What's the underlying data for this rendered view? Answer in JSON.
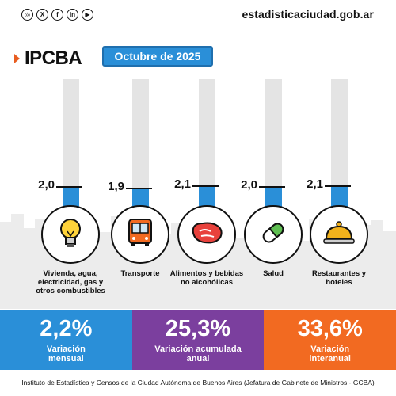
{
  "header": {
    "social_icons": [
      "instagram-icon",
      "x-icon",
      "facebook-icon",
      "linkedin-icon",
      "youtube-icon"
    ],
    "site": "estadisticaciudad.gob.ar",
    "brand": "IPCBA",
    "period": "Octubre de 2025"
  },
  "chart_data": {
    "type": "bar",
    "categories": [
      "Vivienda, agua, electricidad, gas y otros combustibles",
      "Transporte",
      "Alimentos y bebidas no alcohólicas",
      "Salud",
      "Restaurantes y hoteles"
    ],
    "values": [
      2.0,
      1.9,
      2.1,
      2.0,
      2.1
    ],
    "value_labels": [
      "2,0",
      "1,9",
      "2,1",
      "2,0",
      "2,1"
    ],
    "icons": [
      "lightbulb-icon",
      "bus-icon",
      "steak-icon",
      "pill-icon",
      "cloche-icon"
    ],
    "ylim": [
      0,
      10
    ],
    "grid": false,
    "colors": {
      "fill": "#2a8fd8",
      "track": "#e4e4e4"
    }
  },
  "stats": [
    {
      "value": "2,2%",
      "label_1": "Variación",
      "label_2": "mensual",
      "color": "#2a8fd8"
    },
    {
      "value": "25,3%",
      "label_1": "Variación acumulada",
      "label_2": "anual",
      "color": "#7b3f9e"
    },
    {
      "value": "33,6%",
      "label_1": "Variación",
      "label_2": "interanual",
      "color": "#f26a21"
    }
  ],
  "footer": "Instituto de Estadística y Censos de la Ciudad Autónoma de Buenos Aires (Jefatura de Gabinete de Ministros - GCBA)"
}
